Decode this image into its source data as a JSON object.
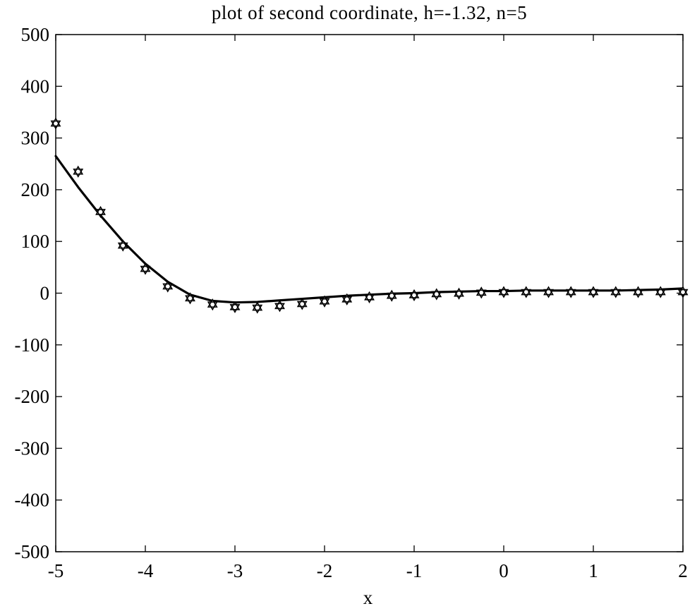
{
  "chart_data": {
    "type": "line",
    "title": "plot of second coordinate, h=-1.32, n=5",
    "xlabel": "x",
    "ylabel": "",
    "xlim": [
      -5,
      2
    ],
    "ylim": [
      -500,
      500
    ],
    "x_ticks": [
      -5,
      -4,
      -3,
      -2,
      -1,
      0,
      1,
      2
    ],
    "y_ticks": [
      -500,
      -400,
      -300,
      -200,
      -100,
      0,
      100,
      200,
      300,
      400,
      500
    ],
    "grid": false,
    "legend": "none",
    "series": [
      {
        "style": "line",
        "color": "#000000",
        "x": [
          -5.0,
          -4.75,
          -4.5,
          -4.25,
          -4.0,
          -3.75,
          -3.5,
          -3.25,
          -3.0,
          -2.75,
          -2.5,
          -2.25,
          -2.0,
          -1.75,
          -1.5,
          -1.25,
          -1.0,
          -0.75,
          -0.5,
          -0.25,
          0.0,
          0.25,
          0.5,
          0.75,
          1.0,
          1.25,
          1.5,
          1.75,
          2.0
        ],
        "y": [
          265,
          205,
          150,
          100,
          57,
          22,
          -3,
          -15,
          -18,
          -17,
          -14,
          -11,
          -8,
          -5,
          -3,
          -1,
          0,
          2,
          3,
          4,
          4,
          5,
          5,
          5,
          5,
          5,
          6,
          7,
          9
        ]
      },
      {
        "style": "markers",
        "marker": "hexagram",
        "color": "#000000",
        "x": [
          -5.0,
          -4.75,
          -4.5,
          -4.25,
          -4.0,
          -3.75,
          -3.5,
          -3.25,
          -3.0,
          -2.75,
          -2.5,
          -2.25,
          -2.0,
          -1.75,
          -1.5,
          -1.25,
          -1.0,
          -0.75,
          -0.5,
          -0.25,
          0.0,
          0.25,
          0.5,
          0.75,
          1.0,
          1.25,
          1.5,
          1.75,
          2.0
        ],
        "y": [
          328,
          235,
          157,
          92,
          47,
          13,
          -10,
          -22,
          -27,
          -28,
          -25,
          -21,
          -16,
          -12,
          -8,
          -5,
          -4,
          -2,
          -1,
          1,
          2,
          2,
          2,
          2,
          2,
          2,
          2,
          2,
          2
        ]
      }
    ]
  }
}
